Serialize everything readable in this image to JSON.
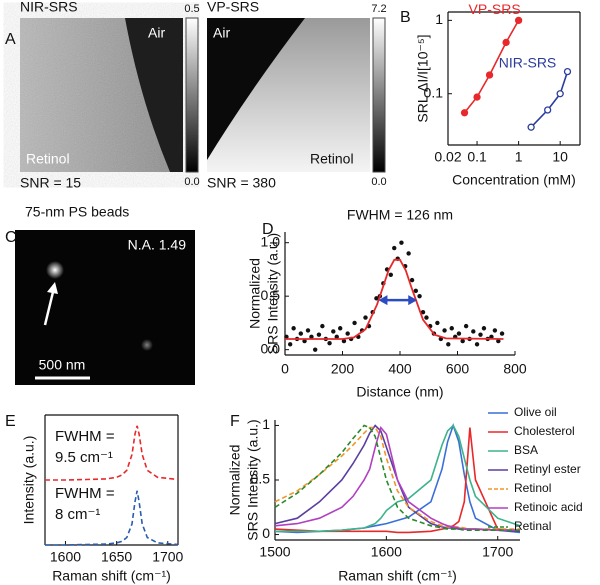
{
  "panel_labels": [
    "A",
    "B",
    "C",
    "D",
    "E",
    "F"
  ],
  "images": [
    {
      "title": "NIR-SRS",
      "labels": [
        "Air",
        "Retinol"
      ],
      "caption": "SNR = 15",
      "colorbar_ticks": [
        {
          "value": 0,
          "label": "0.0"
        },
        0.5
      ]
    },
    {
      "title": "VP-SRS",
      "labels": [
        "Air",
        "Retinol"
      ],
      "caption": "SNR = 380",
      "colorbar_ticks": [
        {
          "value": 0,
          "label": "0.0"
        },
        7.2
      ]
    }
  ],
  "bead_image": {
    "title": "75-nm PS beads",
    "label": "N.A. 1.49",
    "scalebar": "500 nm"
  },
  "chart_data": [
    {
      "type": "line",
      "xlabel": "Concentration (mM)",
      "ylabel": "SRL ΔI/I[10⁻⁵]",
      "x_log": true,
      "y_log": true,
      "xlim": [
        0.02,
        30
      ],
      "ylim": [
        0.02,
        1.3
      ],
      "xticks": [
        0.02,
        0.1,
        1,
        10
      ],
      "yticks": [
        0.1,
        1
      ],
      "box": true,
      "series": [
        {
          "name": "VP-SRS",
          "color": "#e8282a",
          "marker": "filled",
          "x": [
            0.05,
            0.1,
            0.2,
            0.5,
            1
          ],
          "values": [
            0.055,
            0.09,
            0.18,
            0.5,
            1.0
          ]
        },
        {
          "name": "NIR-SRS",
          "color": "#2a3c9c",
          "marker": "open",
          "x": [
            2,
            5,
            10,
            15
          ],
          "values": [
            0.035,
            0.06,
            0.1,
            0.2
          ]
        }
      ]
    },
    {
      "type": "scatter",
      "title": "FWHM = 126 nm",
      "xlabel": "Distance (nm)",
      "ylabel": [
        "Normalized",
        "SRS Intensity (a.u.)"
      ],
      "xlim": [
        0,
        800
      ],
      "ylim": [
        -0.05,
        1.1
      ],
      "xticks": [
        0,
        200,
        400,
        600,
        800
      ],
      "yticks": [
        {
          "value": 0,
          "label": "0.0"
        },
        0.5,
        {
          "value": 1,
          "label": "1.0"
        }
      ],
      "points": {
        "color": "#111111",
        "x": [
          5,
          18,
          30,
          42,
          55,
          68,
          80,
          92,
          105,
          118,
          130,
          142,
          155,
          168,
          180,
          192,
          205,
          218,
          230,
          242,
          255,
          268,
          280,
          292,
          305,
          318,
          330,
          342,
          355,
          368,
          380,
          392,
          405,
          418,
          430,
          442,
          455,
          468,
          480,
          492,
          505,
          518,
          530,
          542,
          555,
          568,
          580,
          592,
          605,
          618,
          630,
          642,
          655,
          668,
          680,
          692,
          705,
          718,
          730,
          742,
          755
        ],
        "y": [
          0.12,
          0.05,
          0.2,
          0.1,
          0.15,
          0.08,
          0.18,
          0.12,
          0.0,
          0.14,
          0.22,
          0.1,
          0.06,
          0.17,
          0.12,
          0.2,
          0.08,
          0.15,
          0.1,
          0.25,
          0.12,
          0.18,
          0.3,
          0.22,
          0.35,
          0.48,
          0.5,
          0.62,
          0.75,
          0.7,
          0.95,
          0.85,
          1.0,
          0.78,
          0.9,
          0.65,
          0.55,
          0.5,
          0.35,
          0.3,
          0.22,
          0.15,
          0.25,
          0.1,
          0.18,
          0.05,
          0.2,
          0.12,
          0.15,
          0.08,
          0.22,
          0.1,
          0.17,
          0.05,
          0.14,
          0.2,
          0.1,
          0.12,
          0.18,
          0.08,
          0.15
        ]
      },
      "fit": {
        "color": "#e8282a",
        "x": [
          0,
          200,
          240,
          280,
          320,
          340,
          360,
          380,
          400,
          420,
          440,
          480,
          520,
          560,
          760
        ],
        "y": [
          0.1,
          0.1,
          0.115,
          0.19,
          0.42,
          0.58,
          0.74,
          0.84,
          0.84,
          0.74,
          0.58,
          0.28,
          0.14,
          0.105,
          0.1
        ]
      }
    },
    {
      "type": "line",
      "xlabel": "Raman shift (cm⁻¹)",
      "ylabel": "Intensity (a.u.)",
      "xlim": [
        1580,
        1710
      ],
      "ylim": [
        0,
        2.4
      ],
      "xticks": [
        1600,
        1650,
        1700
      ],
      "box": true,
      "annotations": [
        "FWHM =",
        "9.5 cm⁻¹",
        "FWHM =",
        "8 cm⁻¹"
      ],
      "x": [
        1580,
        1600,
        1620,
        1640,
        1650,
        1655,
        1660,
        1665,
        1668,
        1670,
        1672,
        1675,
        1680,
        1690,
        1710
      ],
      "series": [
        {
          "color": "#e8282a",
          "dash": true,
          "values": [
            1.2,
            1.2,
            1.21,
            1.22,
            1.25,
            1.29,
            1.38,
            1.67,
            2.05,
            2.2,
            2.05,
            1.67,
            1.38,
            1.25,
            1.21
          ]
        },
        {
          "color": "#2a5cb0",
          "dash": true,
          "values": [
            0.0,
            0.0,
            0.01,
            0.017,
            0.038,
            0.066,
            0.138,
            0.39,
            0.8,
            1.0,
            0.8,
            0.39,
            0.138,
            0.038,
            0.01
          ]
        }
      ]
    },
    {
      "type": "line",
      "xlabel": "Raman shift (cm⁻¹)",
      "ylabel": [
        "Normalized",
        "SRS  Intensity (a.u.)"
      ],
      "xlim": [
        1500,
        1720
      ],
      "ylim": [
        -0.05,
        1.05
      ],
      "xticks": [
        1500,
        1600,
        1700
      ],
      "yticks": [
        0,
        0.5,
        1
      ],
      "legend": true,
      "x": [
        1500,
        1520,
        1540,
        1560,
        1570,
        1580,
        1585,
        1590,
        1595,
        1600,
        1610,
        1620,
        1640,
        1650,
        1655,
        1660,
        1665,
        1670,
        1675,
        1680,
        1700,
        1720
      ],
      "series": [
        {
          "name": "Olive oil",
          "color": "#3a6fd8",
          "values": [
            0.03,
            0.02,
            0.03,
            0.04,
            0.05,
            0.06,
            0.07,
            0.08,
            0.09,
            0.1,
            0.13,
            0.16,
            0.3,
            0.6,
            0.85,
            1.0,
            0.85,
            0.55,
            0.3,
            0.15,
            0.04,
            0.02
          ]
        },
        {
          "name": "Cholesterol",
          "color": "#e8282a",
          "values": [
            0.05,
            0.04,
            0.03,
            0.03,
            0.03,
            0.03,
            0.03,
            0.03,
            0.03,
            0.03,
            0.02,
            0.02,
            0.03,
            0.05,
            0.06,
            0.08,
            0.12,
            0.3,
            0.98,
            0.5,
            0.05,
            0.03
          ]
        },
        {
          "name": "BSA",
          "color": "#3cb38a",
          "values": [
            0.03,
            0.03,
            0.03,
            0.04,
            0.05,
            0.06,
            0.08,
            0.1,
            0.15,
            0.22,
            0.3,
            0.33,
            0.5,
            0.82,
            0.95,
            1.0,
            0.9,
            0.7,
            0.5,
            0.35,
            0.15,
            0.08
          ]
        },
        {
          "name": "Retinyl ester",
          "color": "#5b3fa0",
          "values": [
            0.1,
            0.15,
            0.3,
            0.5,
            0.65,
            0.82,
            0.93,
            1.0,
            0.95,
            0.8,
            0.5,
            0.25,
            0.1,
            0.07,
            0.06,
            0.06,
            0.05,
            0.05,
            0.05,
            0.05,
            0.04,
            0.03
          ]
        },
        {
          "name": "Retinol",
          "color": "#f0952a",
          "dash": true,
          "values": [
            0.3,
            0.4,
            0.55,
            0.72,
            0.82,
            0.93,
            0.98,
            0.98,
            0.9,
            0.7,
            0.4,
            0.25,
            0.12,
            0.08,
            0.07,
            0.07,
            0.07,
            0.06,
            0.05,
            0.05,
            0.05,
            0.05
          ]
        },
        {
          "name": "Retinoic acid",
          "color": "#b040c0",
          "values": [
            0.08,
            0.1,
            0.15,
            0.25,
            0.35,
            0.5,
            0.6,
            0.8,
            0.98,
            0.92,
            0.5,
            0.3,
            0.15,
            0.1,
            0.08,
            0.07,
            0.06,
            0.05,
            0.05,
            0.05,
            0.04,
            0.04
          ]
        },
        {
          "name": "Retinal",
          "color": "#2a8a2a",
          "dash": true,
          "values": [
            0.25,
            0.38,
            0.55,
            0.75,
            0.88,
            1.0,
            0.98,
            0.9,
            0.7,
            0.5,
            0.25,
            0.15,
            0.08,
            0.06,
            0.05,
            0.05,
            0.05,
            0.04,
            0.04,
            0.04,
            0.04,
            0.04
          ]
        }
      ]
    }
  ]
}
